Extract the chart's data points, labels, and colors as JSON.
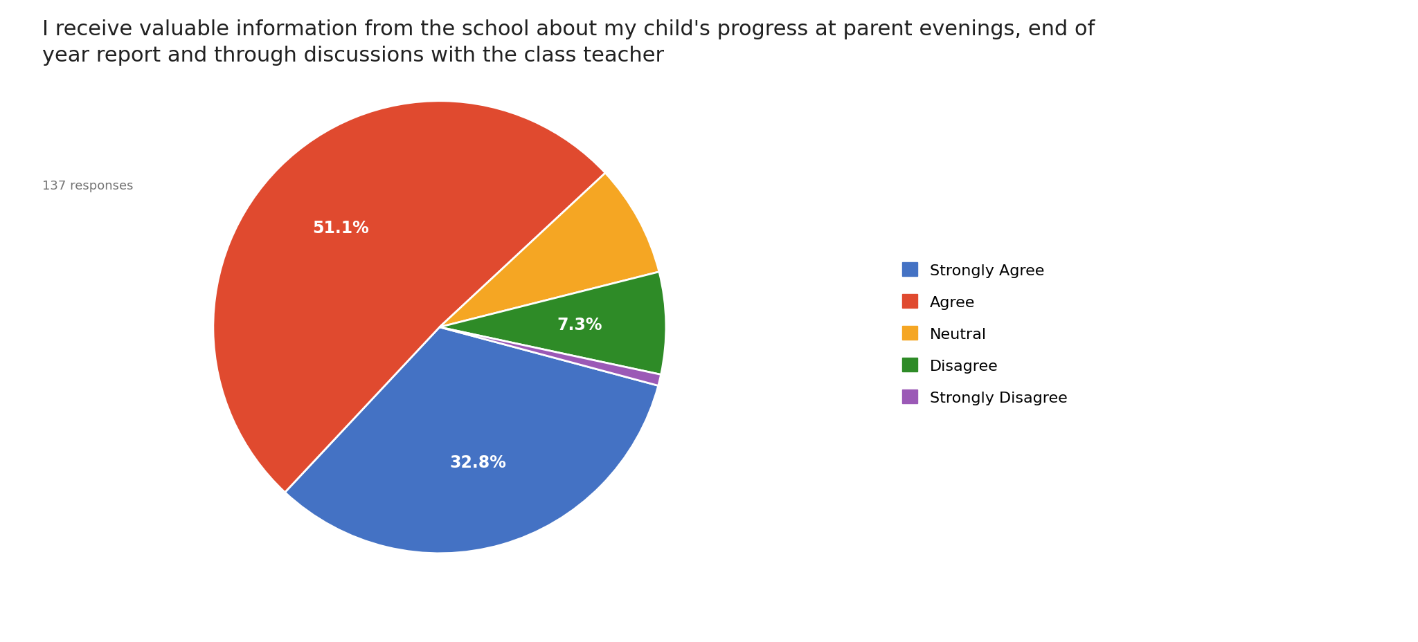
{
  "title": "I receive valuable information from the school about my child's progress at parent evenings, end of\nyear report and through discussions with the class teacher",
  "responses": "137 responses",
  "labels": [
    "Strongly Agree",
    "Agree",
    "Neutral",
    "Disagree",
    "Strongly Disagree"
  ],
  "values": [
    32.8,
    51.1,
    8.0,
    7.3,
    0.8
  ],
  "colors": [
    "#4472C4",
    "#E04A2F",
    "#F5A623",
    "#2E8B27",
    "#9B59B6"
  ],
  "pct_labels": [
    "32.8%",
    "51.1%",
    "",
    "7.3%",
    ""
  ],
  "background_color": "#ffffff",
  "title_fontsize": 22,
  "responses_fontsize": 13
}
